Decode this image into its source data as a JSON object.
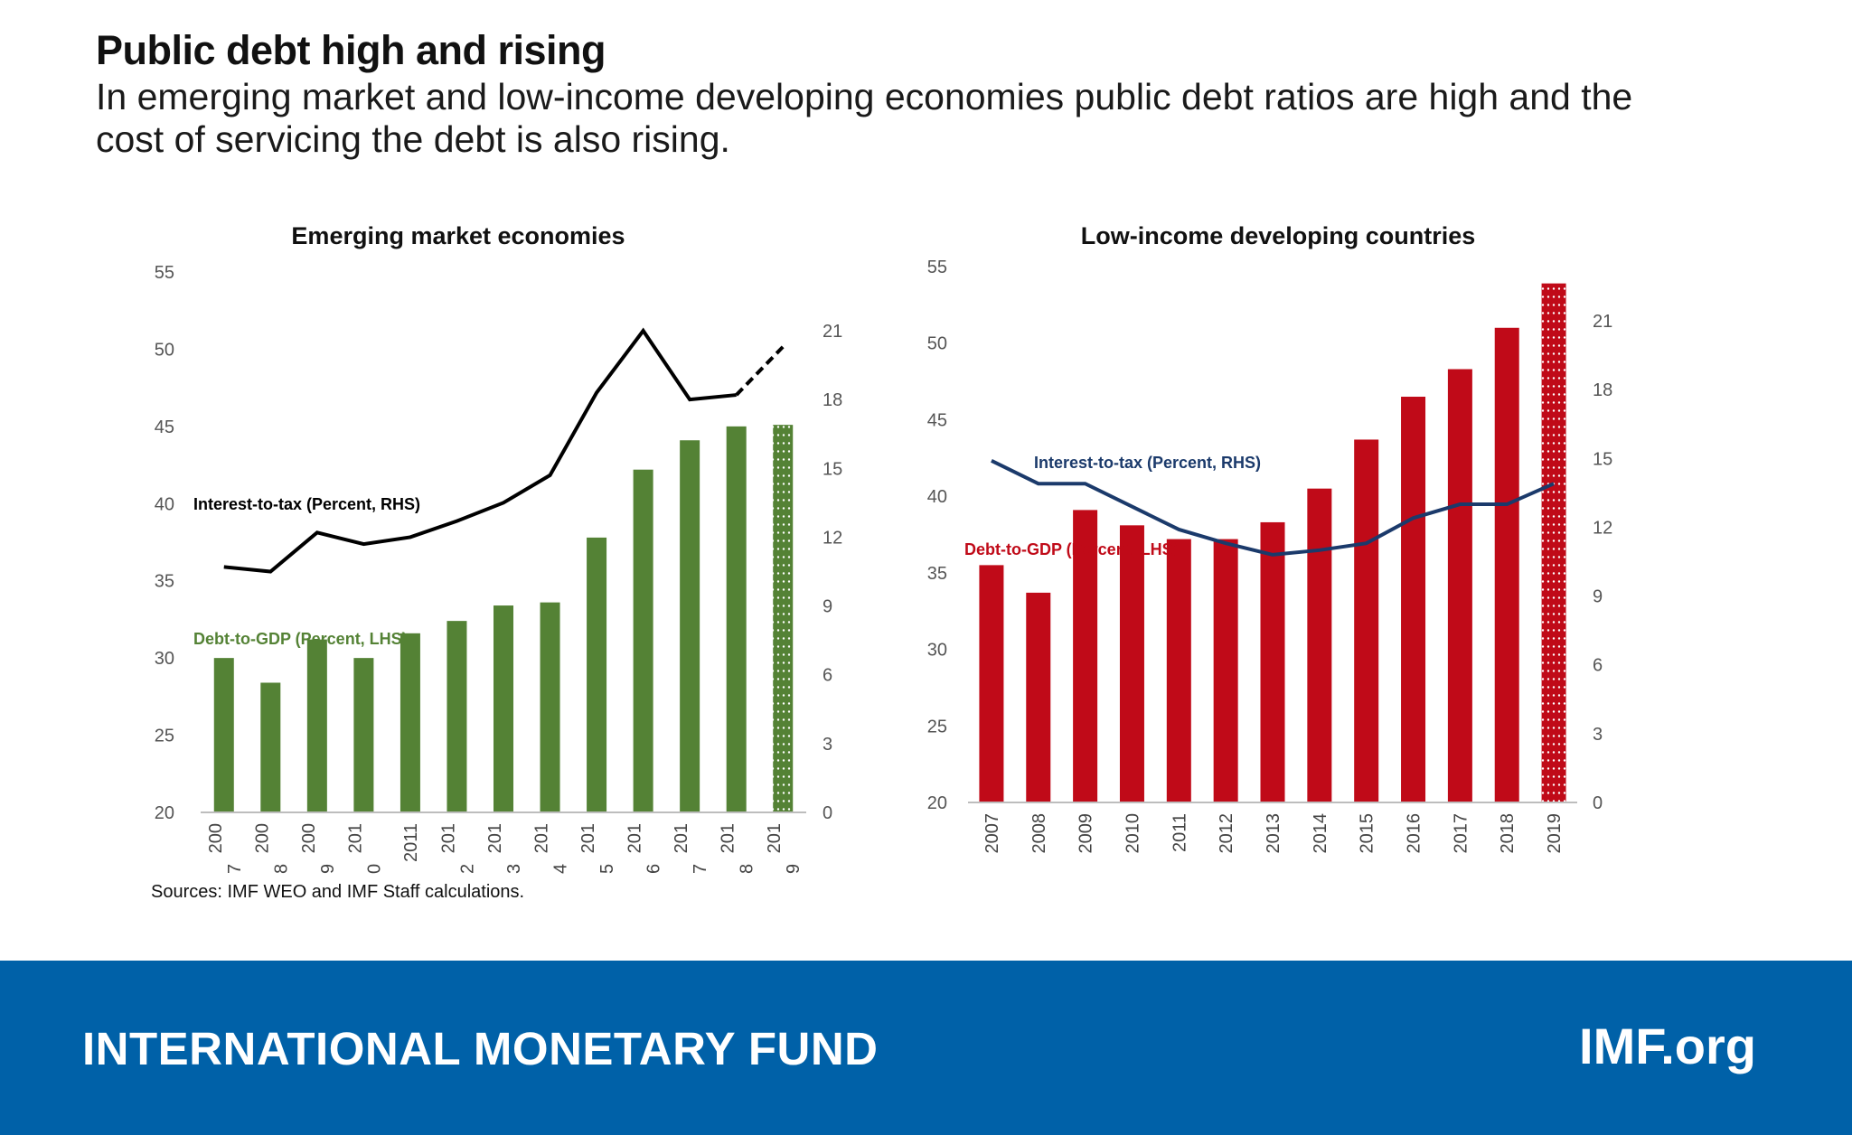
{
  "header": {
    "title": "Public debt high and rising",
    "subtitle": "In emerging market and low-income developing economies public debt ratios are high and the cost of servicing the debt is also rising."
  },
  "source": "Sources: IMF WEO and IMF Staff calculations.",
  "footer": {
    "brand": "INTERNATIONAL MONETARY FUND",
    "link": "IMF.org"
  },
  "colors": {
    "em_bar": "#548235",
    "em_line": "#000000",
    "lidc_bar": "#c00a18",
    "lidc_line": "#1b3a6b",
    "footer": "#0061a8"
  },
  "chart_data": [
    {
      "type": "bar",
      "title": "Emerging market economies",
      "categories": [
        "200\n7",
        "200\n8",
        "200\n9",
        "201\n0",
        "2011",
        "201\n2",
        "201\n3",
        "201\n4",
        "201\n5",
        "201\n6",
        "201\n7",
        "201\n8",
        "201\n9"
      ],
      "left_axis": {
        "ylim": [
          20,
          55
        ],
        "ticks": [
          20,
          25,
          30,
          35,
          40,
          45,
          50,
          55
        ]
      },
      "right_axis": {
        "ylim": [
          0,
          21
        ],
        "ticks": [
          0,
          3,
          6,
          9,
          12,
          15,
          18,
          21
        ]
      },
      "series": [
        {
          "name": "Debt-to-GDP (Percent, LHS)",
          "axis": "left",
          "kind": "bar",
          "color": "#548235",
          "values": [
            30.0,
            28.4,
            31.2,
            30.0,
            31.6,
            32.4,
            33.4,
            33.6,
            37.8,
            42.2,
            44.1,
            45.0,
            45.1
          ],
          "projected_from_index": 12
        },
        {
          "name": "Interest-to-tax (Percent, RHS)",
          "axis": "right",
          "kind": "line",
          "color": "#000000",
          "values": [
            10.7,
            10.5,
            12.2,
            11.7,
            12.0,
            12.7,
            13.5,
            14.7,
            18.3,
            21.0,
            18.0,
            18.2,
            20.3
          ],
          "projected_from_index": 11
        }
      ],
      "legend": "inline labels"
    },
    {
      "type": "bar",
      "title": "Low-income developing countries",
      "categories": [
        "2007",
        "2008",
        "2009",
        "2010",
        "2011",
        "2012",
        "2013",
        "2014",
        "2015",
        "2016",
        "2017",
        "2018",
        "2019"
      ],
      "left_axis": {
        "ylim": [
          20,
          55
        ],
        "ticks": [
          20,
          25,
          30,
          35,
          40,
          45,
          50,
          55
        ]
      },
      "right_axis": {
        "ylim": [
          0,
          21
        ],
        "ticks": [
          0,
          3,
          6,
          9,
          12,
          15,
          18,
          21
        ]
      },
      "series": [
        {
          "name": "Debt-to-GDP (Percent, LHS)",
          "axis": "left",
          "kind": "bar",
          "color": "#c00a18",
          "values": [
            35.5,
            33.7,
            39.1,
            38.1,
            37.2,
            37.2,
            38.3,
            40.5,
            43.7,
            46.5,
            48.3,
            51.0,
            53.9
          ],
          "projected_from_index": 12
        },
        {
          "name": "Interest-to-tax (Percent, RHS)",
          "axis": "right",
          "kind": "line",
          "color": "#1b3a6b",
          "values": [
            14.9,
            13.9,
            13.9,
            12.9,
            11.9,
            11.3,
            10.8,
            11.0,
            11.3,
            12.4,
            13.0,
            13.0,
            13.9
          ]
        }
      ],
      "legend": "inline labels"
    }
  ]
}
